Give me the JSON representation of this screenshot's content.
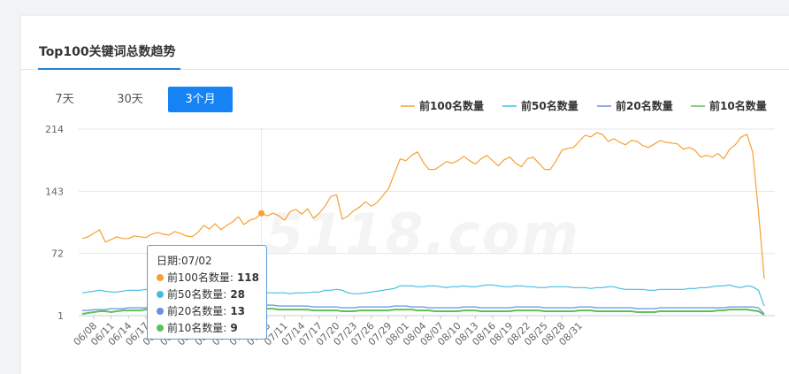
{
  "page": {
    "card_title": "Top100关键词总数趋势",
    "range_buttons": [
      "7天",
      "30天",
      "3个月"
    ],
    "active_range": "3个月",
    "watermark": "5118.com"
  },
  "tooltip": {
    "date_prefix": "日期:",
    "date": "07/02",
    "rows": [
      {
        "label": "前100名数量:",
        "value": "118",
        "color": "#f7a033"
      },
      {
        "label": "前50名数量:",
        "value": "28",
        "color": "#45bde0"
      },
      {
        "label": "前20名数量:",
        "value": "13",
        "color": "#6a8fe0"
      },
      {
        "label": "前10名数量:",
        "value": "9",
        "color": "#5cc25c"
      }
    ]
  },
  "chart_data": {
    "type": "line",
    "title": "",
    "xlabel": "",
    "ylabel": "",
    "ylim": [
      1,
      214
    ],
    "y_ticks": [
      1,
      72,
      143,
      214
    ],
    "grid": "horizontal",
    "legend_position": "top-right",
    "x_tick_labels": [
      "06/08",
      "06/11",
      "06/14",
      "06/17",
      "06/20",
      "06/23",
      "06/26",
      "06/29",
      "07/02",
      "07/05",
      "07/08",
      "07/11",
      "07/14",
      "07/17",
      "07/20",
      "07/23",
      "07/26",
      "07/29",
      "08/01",
      "08/04",
      "08/07",
      "08/10",
      "08/13",
      "08/16",
      "08/19",
      "08/22",
      "08/25",
      "08/28",
      "08/31"
    ],
    "x_start": "06/06",
    "x_end": "09/02",
    "series": [
      {
        "name": "前100名数量",
        "color": "#f7a033",
        "values": [
          89,
          91,
          95,
          99,
          85,
          88,
          91,
          89,
          89,
          92,
          91,
          90,
          94,
          96,
          94,
          93,
          97,
          95,
          92,
          91,
          96,
          104,
          100,
          106,
          99,
          104,
          108,
          114,
          105,
          110,
          112,
          118,
          115,
          118,
          115,
          110,
          120,
          122,
          117,
          123,
          112,
          118,
          126,
          137,
          139,
          111,
          115,
          121,
          125,
          131,
          126,
          130,
          138,
          146,
          163,
          180,
          178,
          184,
          188,
          176,
          168,
          168,
          172,
          177,
          175,
          178,
          183,
          178,
          174,
          180,
          184,
          178,
          172,
          179,
          182,
          175,
          171,
          180,
          182,
          175,
          168,
          168,
          178,
          190,
          192,
          193,
          200,
          207,
          205,
          210,
          208,
          200,
          203,
          199,
          196,
          201,
          200,
          195,
          193,
          197,
          201,
          199,
          198,
          197,
          191,
          193,
          190,
          182,
          184,
          182,
          186,
          180,
          191,
          196,
          205,
          208,
          188,
          120,
          43
        ]
      },
      {
        "name": "前50名数量",
        "color": "#45bde0",
        "values": [
          27,
          28,
          29,
          30,
          29,
          28,
          28,
          29,
          30,
          30,
          30,
          31,
          30,
          30,
          31,
          31,
          30,
          30,
          31,
          31,
          31,
          30,
          30,
          31,
          30,
          29,
          30,
          31,
          30,
          29,
          29,
          28,
          27,
          27,
          27,
          27,
          26,
          27,
          27,
          27,
          28,
          28,
          30,
          30,
          31,
          30,
          27,
          26,
          26,
          27,
          28,
          29,
          30,
          31,
          32,
          35,
          35,
          35,
          34,
          34,
          35,
          35,
          34,
          33,
          34,
          34,
          35,
          34,
          34,
          35,
          36,
          36,
          35,
          34,
          34,
          35,
          35,
          34,
          34,
          33,
          33,
          34,
          34,
          34,
          34,
          33,
          33,
          33,
          32,
          33,
          33,
          34,
          34,
          32,
          31,
          31,
          31,
          31,
          30,
          30,
          31,
          31,
          31,
          31,
          31,
          32,
          32,
          33,
          33,
          34,
          35,
          35,
          36,
          34,
          33,
          35,
          34,
          30,
          12
        ]
      },
      {
        "name": "前20名数量",
        "color": "#6a8fe0",
        "values": [
          7,
          7,
          8,
          8,
          8,
          9,
          9,
          9,
          10,
          10,
          10,
          10,
          11,
          11,
          11,
          11,
          11,
          11,
          12,
          12,
          12,
          12,
          12,
          12,
          12,
          12,
          12,
          12,
          12,
          13,
          13,
          13,
          13,
          13,
          12,
          12,
          12,
          12,
          12,
          12,
          11,
          11,
          11,
          11,
          11,
          10,
          10,
          10,
          11,
          11,
          11,
          11,
          11,
          11,
          12,
          12,
          12,
          11,
          11,
          11,
          10,
          10,
          10,
          10,
          10,
          10,
          11,
          11,
          11,
          10,
          10,
          10,
          10,
          10,
          10,
          11,
          11,
          11,
          11,
          11,
          10,
          10,
          10,
          10,
          10,
          10,
          11,
          11,
          11,
          10,
          10,
          10,
          10,
          10,
          10,
          10,
          9,
          9,
          9,
          9,
          10,
          10,
          10,
          10,
          10,
          10,
          10,
          10,
          10,
          10,
          10,
          10,
          11,
          11,
          11,
          11,
          11,
          10,
          3
        ]
      },
      {
        "name": "前10名数量",
        "color": "#5cc25c",
        "values": [
          3,
          4,
          5,
          6,
          6,
          5,
          6,
          7,
          7,
          7,
          7,
          8,
          8,
          8,
          8,
          8,
          8,
          8,
          9,
          9,
          9,
          9,
          9,
          9,
          9,
          9,
          8,
          8,
          8,
          8,
          9,
          9,
          9,
          9,
          8,
          8,
          8,
          8,
          8,
          8,
          7,
          7,
          7,
          7,
          7,
          6,
          6,
          6,
          7,
          7,
          7,
          7,
          7,
          7,
          8,
          8,
          8,
          8,
          7,
          7,
          7,
          6,
          6,
          6,
          6,
          6,
          7,
          7,
          7,
          6,
          6,
          6,
          6,
          6,
          6,
          7,
          7,
          7,
          7,
          7,
          6,
          6,
          6,
          6,
          6,
          6,
          7,
          7,
          7,
          6,
          6,
          6,
          6,
          6,
          6,
          6,
          5,
          5,
          5,
          5,
          6,
          6,
          6,
          6,
          6,
          6,
          6,
          6,
          6,
          6,
          7,
          7,
          8,
          8,
          8,
          8,
          7,
          6,
          2
        ]
      }
    ],
    "highlight_index": 31
  }
}
